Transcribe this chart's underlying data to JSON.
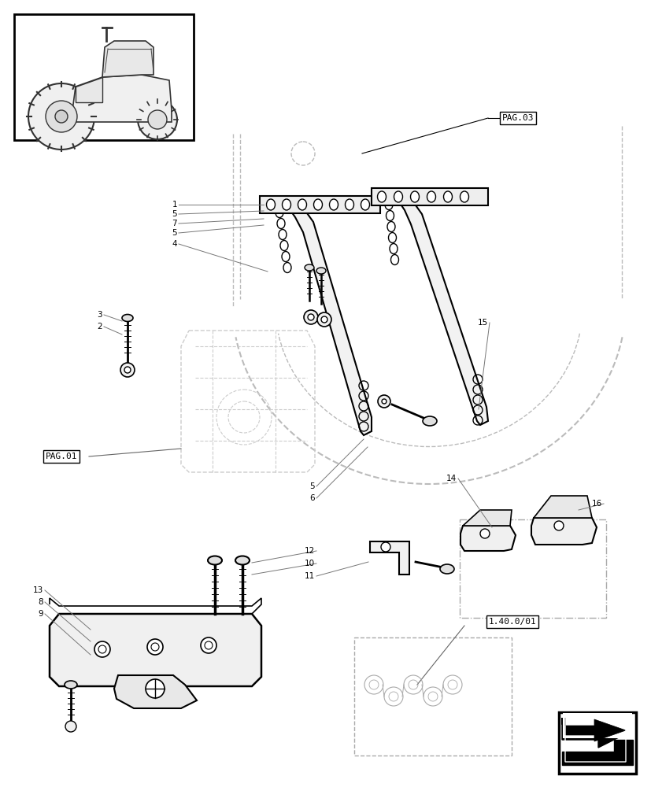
{
  "bg_color": "#ffffff",
  "line_color": "#000000",
  "light_line_color": "#888888",
  "dashed_color": "#bbbbbb",
  "fig_width": 8.28,
  "fig_height": 10.0,
  "dpi": 100,
  "labels": {
    "pag03": "PAG.03",
    "pag01": "PAG.01",
    "ref": "1.40.0/01"
  }
}
